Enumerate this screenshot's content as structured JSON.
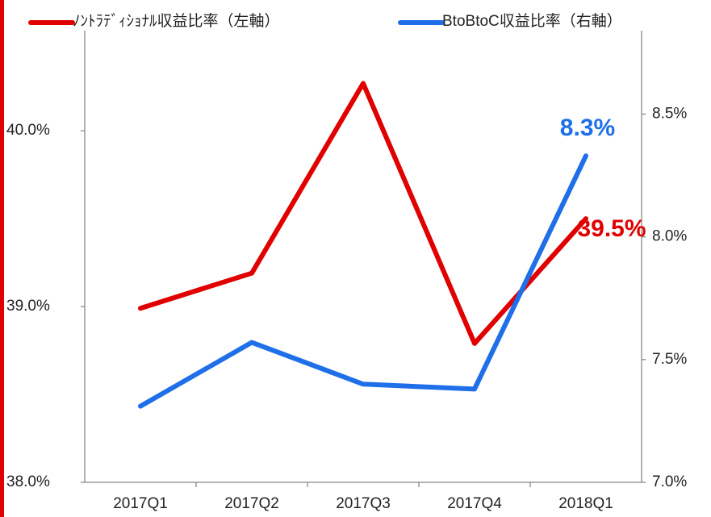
{
  "chart_data": {
    "type": "line",
    "categories": [
      "2017Q1",
      "2017Q2",
      "2017Q3",
      "2017Q4",
      "2018Q1"
    ],
    "series": [
      {
        "name": "ﾉﾝﾄﾗﾃﾞｨｼｮﾅﾙ収益比率（左軸）",
        "color": "#e00000",
        "values": [
          38.99,
          39.19,
          40.27,
          38.79,
          39.5
        ],
        "value_labels": [
          null,
          null,
          null,
          null,
          "39.5%"
        ]
      },
      {
        "name": "BtoBtoC収益比率（右軸）",
        "color": "#1f6fe8",
        "axis": "y2",
        "values": [
          7.31,
          7.57,
          7.4,
          7.38,
          8.33
        ],
        "value_labels": [
          null,
          null,
          null,
          null,
          "8.3%"
        ]
      }
    ],
    "ylim": [
      38.0,
      40.57
    ],
    "yticks": [
      {
        "value": 38.0,
        "label": "38.0%"
      },
      {
        "value": 39.0,
        "label": "39.0%"
      },
      {
        "value": 40.0,
        "label": "40.0%"
      }
    ],
    "y2lim": [
      7.0,
      8.84
    ],
    "y2ticks": [
      {
        "value": 7.0,
        "label": "7.0%"
      },
      {
        "value": 7.5,
        "label": "7.5%"
      },
      {
        "value": 8.0,
        "label": "8.0%"
      },
      {
        "value": 8.5,
        "label": "8.5%"
      }
    ],
    "grid": false
  }
}
